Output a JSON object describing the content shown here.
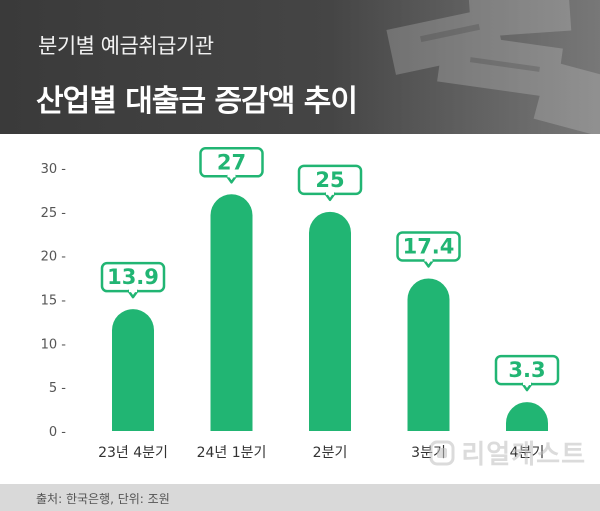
{
  "header": {
    "subtitle": "분기별 예금취급기관",
    "title": "산업별 대출금 증감액 추이"
  },
  "footer": {
    "source": "출처: 한국은행, 단위: 조원"
  },
  "logo": {
    "text": "리얼캐스트"
  },
  "colors": {
    "bar": "#21b573",
    "header_bg": "#404040",
    "footer_bg": "#d9d9d9",
    "axis_text": "#555555"
  },
  "chart_data": {
    "type": "bar",
    "categories": [
      "23년 4분기",
      "24년 1분기",
      "2분기",
      "3분기",
      "4분기"
    ],
    "values": [
      13.9,
      27,
      25,
      17.4,
      3.3
    ],
    "value_labels": [
      "13.9",
      "27",
      "25",
      "17.4",
      "3.3"
    ],
    "title": "",
    "xlabel": "",
    "ylabel": "",
    "ylim": [
      0,
      30
    ],
    "yticks": [
      0,
      5,
      10,
      15,
      20,
      25,
      30
    ],
    "ytick_labels": [
      "0 -",
      "5 -",
      "10 -",
      "15 -",
      "20 -",
      "25 -",
      "30 -"
    ],
    "grid": false,
    "legend": "none"
  }
}
